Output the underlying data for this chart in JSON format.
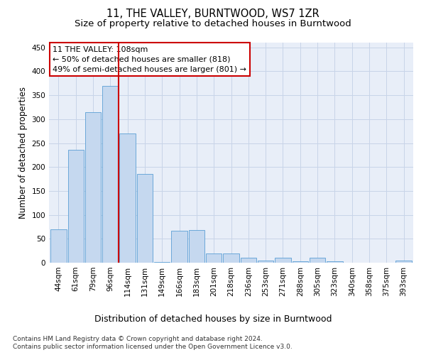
{
  "title": "11, THE VALLEY, BURNTWOOD, WS7 1ZR",
  "subtitle": "Size of property relative to detached houses in Burntwood",
  "xlabel": "Distribution of detached houses by size in Burntwood",
  "ylabel": "Number of detached properties",
  "categories": [
    "44sqm",
    "61sqm",
    "79sqm",
    "96sqm",
    "114sqm",
    "131sqm",
    "149sqm",
    "166sqm",
    "183sqm",
    "201sqm",
    "218sqm",
    "236sqm",
    "253sqm",
    "271sqm",
    "288sqm",
    "305sqm",
    "323sqm",
    "340sqm",
    "358sqm",
    "375sqm",
    "393sqm"
  ],
  "values": [
    70,
    236,
    315,
    370,
    270,
    185,
    2,
    67,
    68,
    20,
    19,
    10,
    5,
    10,
    3,
    10,
    3,
    0,
    0,
    0,
    4
  ],
  "bar_color": "#c5d8ef",
  "bar_edge_color": "#5a9fd4",
  "vline_x": 3.5,
  "vline_color": "#cc0000",
  "annotation_box_text": "11 THE VALLEY: 108sqm\n← 50% of detached houses are smaller (818)\n49% of semi-detached houses are larger (801) →",
  "annotation_fontsize": 8,
  "annotation_box_color": "white",
  "annotation_border_color": "#cc0000",
  "ylim": [
    0,
    460
  ],
  "yticks": [
    0,
    50,
    100,
    150,
    200,
    250,
    300,
    350,
    400,
    450
  ],
  "title_fontsize": 10.5,
  "subtitle_fontsize": 9.5,
  "xlabel_fontsize": 9,
  "ylabel_fontsize": 8.5,
  "tick_fontsize": 7.5,
  "footer_line1": "Contains HM Land Registry data © Crown copyright and database right 2024.",
  "footer_line2": "Contains public sector information licensed under the Open Government Licence v3.0.",
  "footer_fontsize": 6.5,
  "background_color": "#ffffff",
  "grid_color": "#c8d4e8",
  "axes_background": "#e8eef8"
}
